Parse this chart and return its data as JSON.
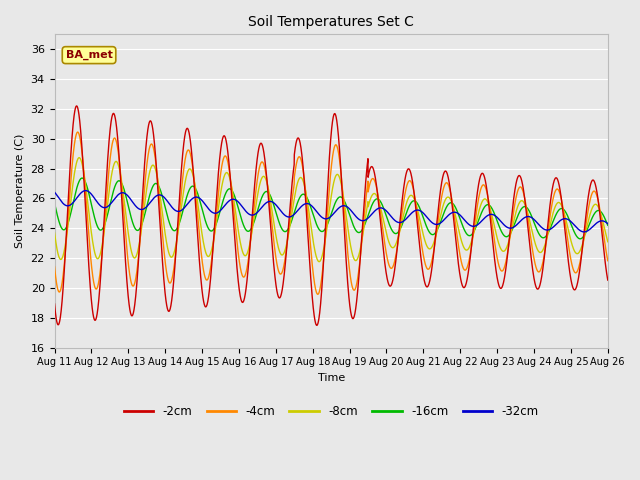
{
  "title": "Soil Temperatures Set C",
  "xlabel": "Time",
  "ylabel": "Soil Temperature (C)",
  "ylim": [
    16,
    37
  ],
  "annotation": "BA_met",
  "legend_labels": [
    "-2cm",
    "-4cm",
    "-8cm",
    "-16cm",
    "-32cm"
  ],
  "legend_colors": [
    "#cc0000",
    "#ff8800",
    "#cccc00",
    "#00bb00",
    "#0000cc"
  ],
  "bg_color": "#e8e8e8",
  "plot_bg_color": "#e8e8e8",
  "grid_color": "#ffffff",
  "tick_labels": [
    "Aug 11",
    "Aug 12",
    "Aug 13",
    "Aug 14",
    "Aug 15",
    "Aug 16",
    "Aug 17",
    "Aug 18",
    "Aug 19",
    "Aug 20",
    "Aug 21",
    "Aug 22",
    "Aug 23",
    "Aug 24",
    "Aug 25",
    "Aug 26"
  ]
}
